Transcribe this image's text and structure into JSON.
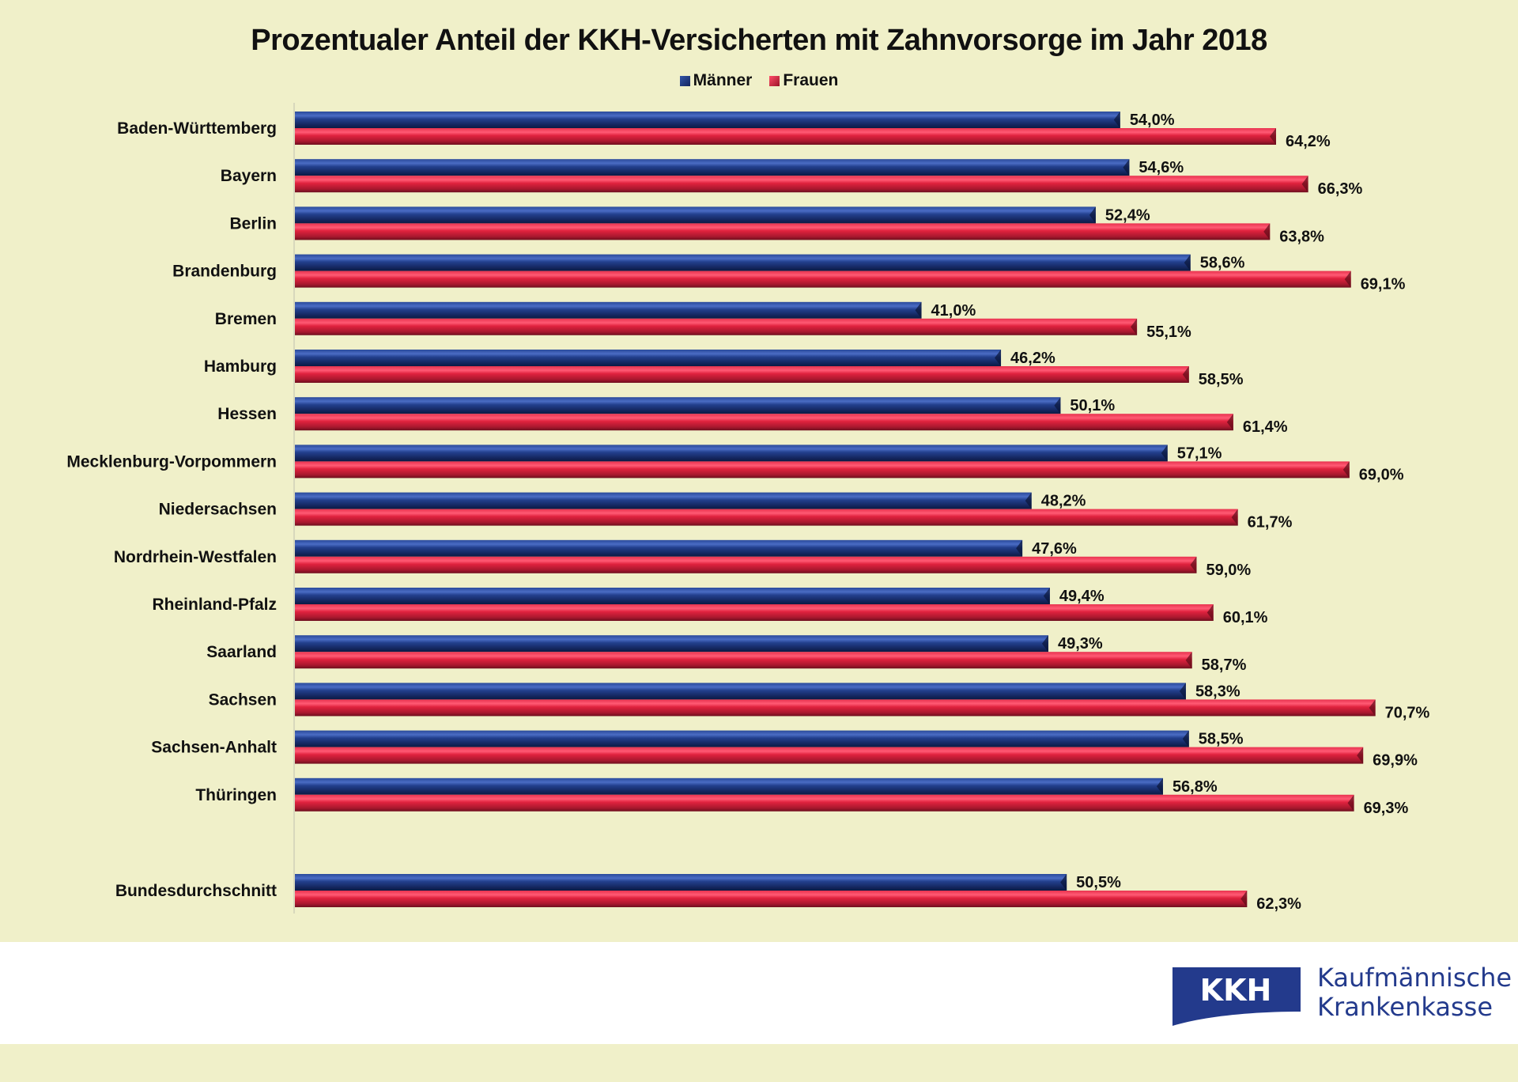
{
  "chart_data": {
    "type": "bar",
    "orientation": "horizontal",
    "title": "Prozentualer Anteil der KKH-Versicherten mit Zahnvorsorge im Jahr 2018",
    "xlabel": "",
    "ylabel": "",
    "xlim": [
      0,
      80
    ],
    "grid": false,
    "legend_position": "top-center",
    "categories": [
      "Baden-Württemberg",
      "Bayern",
      "Berlin",
      "Brandenburg",
      "Bremen",
      "Hamburg",
      "Hessen",
      "Mecklenburg-Vorpommern",
      "Niedersachsen",
      "Nordrhein-Westfalen",
      "Rheinland-Pfalz",
      "Saarland",
      "Sachsen",
      "Sachsen-Anhalt",
      "Thüringen",
      "Bundesdurchschnitt"
    ],
    "series": [
      {
        "name": "Männer",
        "color": "#1f3b82",
        "values": [
          54.0,
          54.6,
          52.4,
          58.6,
          41.0,
          46.2,
          50.1,
          57.1,
          48.2,
          47.6,
          49.4,
          49.3,
          58.3,
          58.5,
          56.8,
          50.5
        ],
        "labels": [
          "54,0%",
          "54,6%",
          "52,4%",
          "58,6%",
          "41,0%",
          "46,2%",
          "50,1%",
          "57,1%",
          "48,2%",
          "47,6%",
          "49,4%",
          "49,3%",
          "58,3%",
          "58,5%",
          "56,8%",
          "50,5%"
        ]
      },
      {
        "name": "Frauen",
        "color": "#e0223e",
        "values": [
          64.2,
          66.3,
          63.8,
          69.1,
          55.1,
          58.5,
          61.4,
          69.0,
          61.7,
          59.0,
          60.1,
          58.7,
          70.7,
          69.9,
          69.3,
          62.3
        ],
        "labels": [
          "64,2%",
          "66,3%",
          "63,8%",
          "69,1%",
          "55,1%",
          "58,5%",
          "61,4%",
          "69,0%",
          "61,7%",
          "59,0%",
          "60,1%",
          "58,7%",
          "70,7%",
          "69,9%",
          "69,3%",
          "62,3%"
        ]
      }
    ]
  },
  "legend": {
    "men": "Männer",
    "women": "Frauen"
  },
  "logo": {
    "mark": "KKH",
    "line1": "Kaufmännische",
    "line2": "Krankenkasse",
    "color": "#233a8c"
  }
}
